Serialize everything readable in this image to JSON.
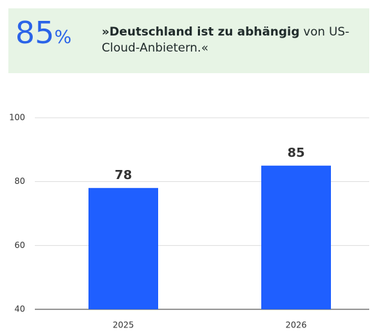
{
  "header": {
    "stat": "85",
    "unit": "%",
    "quote_bold": "»Deutschland ist zu abhängig",
    "quote_rest": " von US-Cloud-Anbietern.«"
  },
  "chart_data": {
    "type": "bar",
    "categories": [
      "2025",
      "2026"
    ],
    "values": [
      78,
      85
    ],
    "color": "#1f5fff",
    "ylim": [
      40,
      100
    ],
    "yticks": [
      40,
      60,
      80,
      100
    ],
    "grid": true
  }
}
